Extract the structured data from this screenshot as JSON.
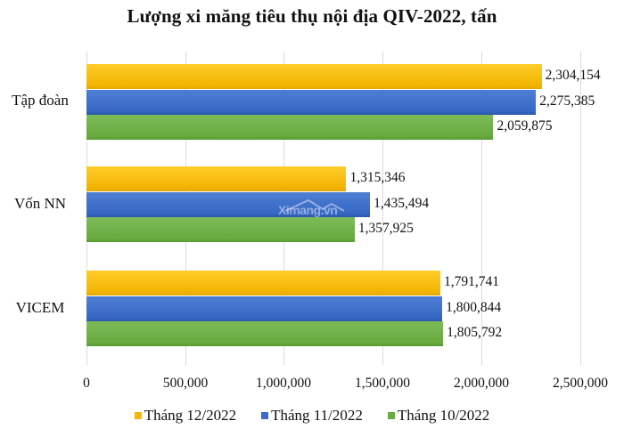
{
  "title": "Lượng xi măng tiêu thụ nội địa QIV-2022, tấn",
  "watermark": "Ximang.vn",
  "colors": {
    "thang_12": "#f5b800",
    "thang_11": "#3a6cc8",
    "thang_10": "#6aab40",
    "gridline": "#dcdcdc",
    "text": "#111111"
  },
  "categories": [
    {
      "label": "Tập đoàn",
      "values_text": [
        "2,304,154",
        "2,275,385",
        "2,059,875"
      ]
    },
    {
      "label": "Vốn NN",
      "values_text": [
        "1,315,346",
        "1,435,494",
        "1,357,925"
      ]
    },
    {
      "label": "VICEM",
      "values_text": [
        "1,791,741",
        "1,800,844",
        "1,805,792"
      ]
    }
  ],
  "axis": {
    "ticks": [
      "0",
      "500,000",
      "1,000,000",
      "1,500,000",
      "2,000,000",
      "2,500,000"
    ]
  },
  "legend": [
    {
      "label": "Tháng 12/2022",
      "color": "#f5b800"
    },
    {
      "label": "Tháng 11/2022",
      "color": "#3a6cc8"
    },
    {
      "label": "Tháng 10/2022",
      "color": "#6aab40"
    }
  ],
  "chart_data": {
    "type": "bar",
    "orientation": "horizontal",
    "title": "Lượng xi măng tiêu thụ nội địa QIV-2022, tấn",
    "categories": [
      "Tập đoàn",
      "Vốn NN",
      "VICEM"
    ],
    "series": [
      {
        "name": "Tháng 12/2022",
        "color": "#f5b800",
        "values": [
          2304154,
          1315346,
          1791741
        ]
      },
      {
        "name": "Tháng 11/2022",
        "color": "#3a6cc8",
        "values": [
          2275385,
          1435494,
          1800844
        ]
      },
      {
        "name": "Tháng 10/2022",
        "color": "#6aab40",
        "values": [
          2059875,
          1357925,
          1805792
        ]
      }
    ],
    "xlabel": "",
    "ylabel": "",
    "xlim": [
      0,
      2500000
    ],
    "xticks": [
      0,
      500000,
      1000000,
      1500000,
      2000000,
      2500000
    ],
    "grid": true,
    "data_labels": true,
    "legend_position": "bottom"
  }
}
